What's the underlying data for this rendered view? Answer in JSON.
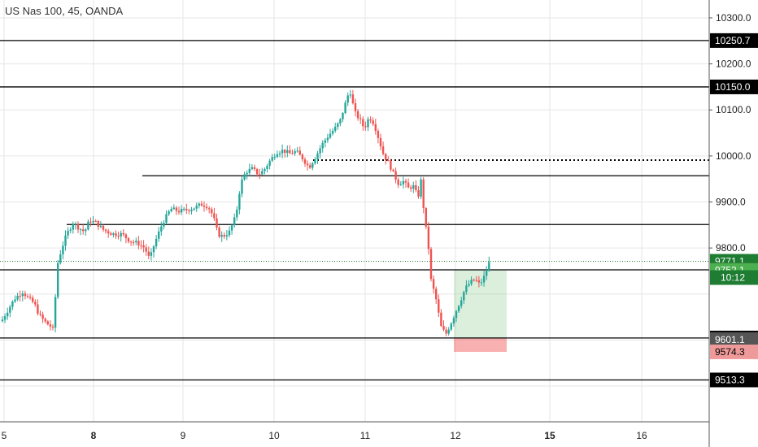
{
  "header": {
    "title": "US Nas 100, 45, OANDA"
  },
  "chart_data": {
    "type": "candlestick",
    "ylim": [
      9440,
      10340
    ],
    "x_ticks": [
      "5",
      "8",
      "9",
      "10",
      "11",
      "12",
      "15",
      "16"
    ],
    "y_ticks": [
      {
        "value": 9800,
        "label": "9800.0"
      },
      {
        "value": 9900,
        "label": "9900.0"
      },
      {
        "value": 10000,
        "label": "10000.0"
      },
      {
        "value": 10100,
        "label": "10100.0"
      },
      {
        "value": 10200,
        "label": "10200.0"
      },
      {
        "value": 10300,
        "label": "10300.0"
      }
    ],
    "horizontal_lines": [
      {
        "value": 10250.7,
        "style": "solid",
        "span": "full"
      },
      {
        "value": 10150.0,
        "style": "solid",
        "span": "full"
      },
      {
        "value": 9991,
        "style": "dotted",
        "span": "partial"
      },
      {
        "value": 9957,
        "style": "solid",
        "span": "partial"
      },
      {
        "value": 9851,
        "style": "solid",
        "span": "partial"
      },
      {
        "value": 9752.6,
        "style": "solid",
        "span": "full"
      },
      {
        "value": 9604.4,
        "style": "solid",
        "span": "full"
      },
      {
        "value": 9513.3,
        "style": "solid",
        "span": "full"
      }
    ],
    "current_price_line": 9771.1,
    "price_labels": [
      {
        "value": 10250.7,
        "label": "10250.7",
        "bg": "#000000",
        "fg": "#ffffff"
      },
      {
        "value": 10150.0,
        "label": "10150.0",
        "bg": "#000000",
        "fg": "#ffffff"
      },
      {
        "value": 9771.1,
        "label": "9771.1",
        "bg": "#1e7d32",
        "fg": "#ffffff"
      },
      {
        "value": 9752.6,
        "label": "9752.6",
        "bg": "#000000",
        "fg": "#ffffff"
      },
      {
        "value": 9752.1,
        "label": "9752.1",
        "bg": "#4caf50",
        "fg": "#ffffff"
      },
      {
        "value": 9604.4,
        "label": "9604.4",
        "bg": "#000000",
        "fg": "#ffffff"
      },
      {
        "value": 9601.1,
        "label": "9601.1",
        "bg": "#555555",
        "fg": "#ffffff"
      },
      {
        "value": 9574.3,
        "label": "9574.3",
        "bg": "#ef9a9a",
        "fg": "#000000"
      },
      {
        "value": 9513.3,
        "label": "9513.3",
        "bg": "#000000",
        "fg": "#ffffff"
      }
    ],
    "countdown": "10:12",
    "position": {
      "entry": 9604.4,
      "target": 9752.1,
      "stop": 9574.3
    },
    "colors": {
      "up": "#26a69a",
      "down": "#ef5350",
      "grid": "#e6e6e6"
    },
    "anchors": [
      [
        0,
        9635
      ],
      [
        8,
        9660
      ],
      [
        18,
        9690
      ],
      [
        28,
        9705
      ],
      [
        35,
        9690
      ],
      [
        42,
        9680
      ],
      [
        48,
        9655
      ],
      [
        55,
        9640
      ],
      [
        62,
        9630
      ],
      [
        66,
        9620
      ],
      [
        70,
        9760
      ],
      [
        76,
        9800
      ],
      [
        82,
        9830
      ],
      [
        90,
        9855
      ],
      [
        96,
        9845
      ],
      [
        104,
        9835
      ],
      [
        110,
        9860
      ],
      [
        118,
        9855
      ],
      [
        128,
        9838
      ],
      [
        140,
        9830
      ],
      [
        150,
        9830
      ],
      [
        160,
        9815
      ],
      [
        170,
        9810
      ],
      [
        178,
        9800
      ],
      [
        184,
        9775
      ],
      [
        190,
        9810
      ],
      [
        200,
        9855
      ],
      [
        210,
        9885
      ],
      [
        220,
        9880
      ],
      [
        230,
        9883
      ],
      [
        240,
        9888
      ],
      [
        248,
        9895
      ],
      [
        256,
        9890
      ],
      [
        262,
        9870
      ],
      [
        268,
        9830
      ],
      [
        274,
        9825
      ],
      [
        282,
        9835
      ],
      [
        290,
        9870
      ],
      [
        296,
        9940
      ],
      [
        302,
        9965
      ],
      [
        310,
        9972
      ],
      [
        318,
        9960
      ],
      [
        324,
        9968
      ],
      [
        332,
        9990
      ],
      [
        340,
        10008
      ],
      [
        348,
        10012
      ],
      [
        356,
        10005
      ],
      [
        364,
        10010
      ],
      [
        372,
        9995
      ],
      [
        380,
        9975
      ],
      [
        388,
        9998
      ],
      [
        396,
        10025
      ],
      [
        404,
        10045
      ],
      [
        412,
        10060
      ],
      [
        418,
        10075
      ],
      [
        424,
        10110
      ],
      [
        430,
        10145
      ],
      [
        436,
        10095
      ],
      [
        442,
        10080
      ],
      [
        448,
        10060
      ],
      [
        454,
        10085
      ],
      [
        460,
        10070
      ],
      [
        466,
        10035
      ],
      [
        472,
        10000
      ],
      [
        478,
        9985
      ],
      [
        484,
        9960
      ],
      [
        490,
        9940
      ],
      [
        496,
        9945
      ],
      [
        502,
        9930
      ],
      [
        508,
        9935
      ],
      [
        514,
        9910
      ],
      [
        518,
        9950
      ],
      [
        522,
        9860
      ],
      [
        526,
        9820
      ],
      [
        530,
        9730
      ],
      [
        536,
        9690
      ],
      [
        542,
        9630
      ],
      [
        548,
        9612
      ],
      [
        554,
        9635
      ],
      [
        560,
        9660
      ],
      [
        566,
        9685
      ],
      [
        572,
        9712
      ],
      [
        578,
        9725
      ],
      [
        584,
        9732
      ],
      [
        590,
        9720
      ],
      [
        596,
        9740
      ],
      [
        602,
        9771
      ]
    ]
  }
}
